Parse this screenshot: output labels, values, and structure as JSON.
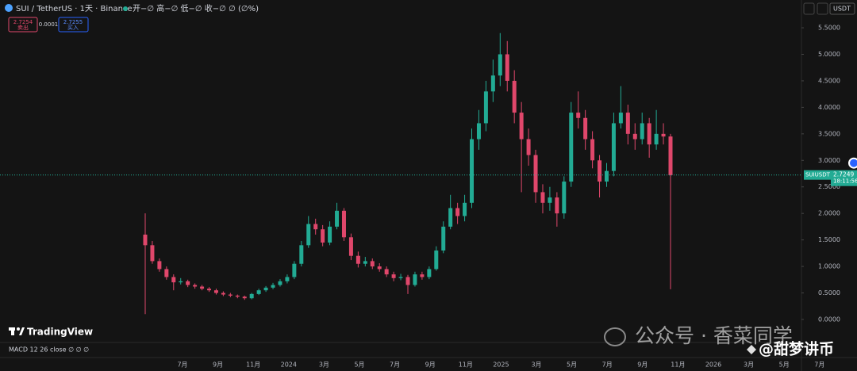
{
  "chart_data": {
    "type": "candlestick",
    "title": "SUI / TetherUS · 1天 · Binance",
    "ohlc_legend": "开−∅ 高−∅ 低−∅ 收−∅ ∅ (∅%)",
    "sell_price": "2.7254",
    "sell_label": "卖出",
    "spread": "0.0001",
    "buy_price": "2.7255",
    "buy_label": "买入",
    "currency": "USDT",
    "symbol_tag": "SUIUSDT",
    "last_price": 2.7249,
    "countdown": "18:11:56",
    "indicator": "MACD 12 26 close ∅ ∅ ∅",
    "brand": "TradingView",
    "watermark": "公众号 · 香菜同学",
    "watermark2": "@甜梦讲币",
    "up_color": "#22ab94",
    "down_color": "#e0476b",
    "ylim": [
      -0.374,
      5.695
    ],
    "yticks": [
      {
        "value": 0,
        "label": "0.0000"
      },
      {
        "value": 0.5,
        "label": "0.5000"
      },
      {
        "value": 1,
        "label": "1.0000"
      },
      {
        "value": 1.5,
        "label": "1.5000"
      },
      {
        "value": 2,
        "label": "2.0000"
      },
      {
        "value": 2.5,
        "label": "2.5000"
      },
      {
        "value": 3,
        "label": "3.0000"
      },
      {
        "value": 3.5,
        "label": "3.5000"
      },
      {
        "value": 4,
        "label": "4.0000"
      },
      {
        "value": 4.5,
        "label": "4.5000"
      },
      {
        "value": 5,
        "label": "5.0000"
      },
      {
        "value": 5.5,
        "label": "5.5000"
      }
    ],
    "time_labels": [
      "7月",
      "9月",
      "11月",
      "2024",
      "3月",
      "5月",
      "7月",
      "9月",
      "11月",
      "2025",
      "3月",
      "5月",
      "7月",
      "9月",
      "11月",
      "2026",
      "3月",
      "5月",
      "7月"
    ],
    "candles": [
      [
        1.6,
        2.0,
        0.1,
        1.4
      ],
      [
        1.4,
        1.48,
        1.05,
        1.1
      ],
      [
        1.1,
        1.15,
        0.9,
        0.95
      ],
      [
        0.95,
        1.0,
        0.75,
        0.8
      ],
      [
        0.8,
        0.85,
        0.55,
        0.7
      ],
      [
        0.7,
        0.78,
        0.66,
        0.72
      ],
      [
        0.72,
        0.75,
        0.61,
        0.65
      ],
      [
        0.65,
        0.68,
        0.58,
        0.62
      ],
      [
        0.62,
        0.65,
        0.55,
        0.58
      ],
      [
        0.58,
        0.61,
        0.52,
        0.55
      ],
      [
        0.55,
        0.58,
        0.47,
        0.5
      ],
      [
        0.5,
        0.53,
        0.44,
        0.47
      ],
      [
        0.47,
        0.5,
        0.42,
        0.45
      ],
      [
        0.45,
        0.47,
        0.4,
        0.43
      ],
      [
        0.43,
        0.45,
        0.37,
        0.4
      ],
      [
        0.4,
        0.5,
        0.38,
        0.48
      ],
      [
        0.48,
        0.58,
        0.46,
        0.55
      ],
      [
        0.55,
        0.63,
        0.52,
        0.6
      ],
      [
        0.6,
        0.69,
        0.57,
        0.65
      ],
      [
        0.65,
        0.76,
        0.62,
        0.72
      ],
      [
        0.72,
        0.85,
        0.68,
        0.8
      ],
      [
        0.8,
        1.1,
        0.76,
        1.05
      ],
      [
        1.05,
        1.48,
        1.0,
        1.4
      ],
      [
        1.4,
        1.95,
        1.35,
        1.8
      ],
      [
        1.8,
        1.9,
        1.6,
        1.7
      ],
      [
        1.7,
        1.78,
        1.38,
        1.45
      ],
      [
        1.45,
        1.85,
        1.4,
        1.75
      ],
      [
        1.75,
        2.2,
        1.7,
        2.05
      ],
      [
        2.05,
        2.1,
        1.48,
        1.55
      ],
      [
        1.55,
        1.62,
        1.12,
        1.2
      ],
      [
        1.2,
        1.28,
        0.98,
        1.05
      ],
      [
        1.05,
        1.18,
        1.0,
        1.1
      ],
      [
        1.1,
        1.15,
        0.95,
        1.0
      ],
      [
        1.0,
        1.06,
        0.9,
        0.95
      ],
      [
        0.95,
        1.0,
        0.8,
        0.85
      ],
      [
        0.85,
        0.9,
        0.72,
        0.78
      ],
      [
        0.78,
        0.86,
        0.74,
        0.8
      ],
      [
        0.8,
        0.84,
        0.48,
        0.65
      ],
      [
        0.65,
        0.9,
        0.62,
        0.85
      ],
      [
        0.85,
        0.9,
        0.75,
        0.8
      ],
      [
        0.8,
        1.0,
        0.76,
        0.95
      ],
      [
        0.95,
        1.38,
        0.92,
        1.3
      ],
      [
        1.3,
        1.85,
        1.25,
        1.75
      ],
      [
        1.75,
        2.35,
        1.7,
        2.1
      ],
      [
        2.1,
        2.2,
        1.8,
        1.95
      ],
      [
        1.95,
        2.35,
        1.85,
        2.2
      ],
      [
        2.2,
        3.6,
        2.1,
        3.4
      ],
      [
        3.4,
        3.95,
        3.2,
        3.7
      ],
      [
        3.7,
        4.5,
        3.55,
        4.3
      ],
      [
        4.3,
        4.9,
        4.1,
        4.6
      ],
      [
        4.6,
        5.4,
        4.4,
        5.0
      ],
      [
        5.0,
        5.25,
        4.3,
        4.5
      ],
      [
        4.5,
        4.7,
        3.7,
        3.9
      ],
      [
        3.9,
        4.1,
        2.4,
        3.4
      ],
      [
        3.4,
        3.6,
        2.9,
        3.1
      ],
      [
        3.1,
        3.2,
        2.2,
        2.4
      ],
      [
        2.4,
        2.55,
        2.0,
        2.2
      ],
      [
        2.2,
        2.5,
        2.05,
        2.3
      ],
      [
        2.3,
        2.4,
        1.75,
        2.0
      ],
      [
        2.0,
        2.7,
        1.9,
        2.6
      ],
      [
        2.6,
        4.1,
        2.5,
        3.9
      ],
      [
        3.9,
        4.3,
        3.6,
        3.8
      ],
      [
        3.8,
        3.95,
        3.2,
        3.4
      ],
      [
        3.4,
        3.55,
        2.85,
        3.0
      ],
      [
        3.0,
        3.1,
        2.3,
        2.6
      ],
      [
        2.6,
        2.95,
        2.5,
        2.8
      ],
      [
        2.8,
        3.9,
        2.7,
        3.7
      ],
      [
        3.7,
        4.4,
        3.6,
        3.9
      ],
      [
        3.9,
        4.05,
        3.3,
        3.5
      ],
      [
        3.5,
        3.7,
        3.2,
        3.4
      ],
      [
        3.4,
        3.9,
        3.3,
        3.7
      ],
      [
        3.7,
        3.8,
        3.05,
        3.3
      ],
      [
        3.3,
        3.95,
        3.2,
        3.5
      ],
      [
        3.5,
        3.7,
        3.3,
        3.45
      ],
      [
        3.45,
        3.5,
        0.57,
        2.72
      ]
    ]
  }
}
